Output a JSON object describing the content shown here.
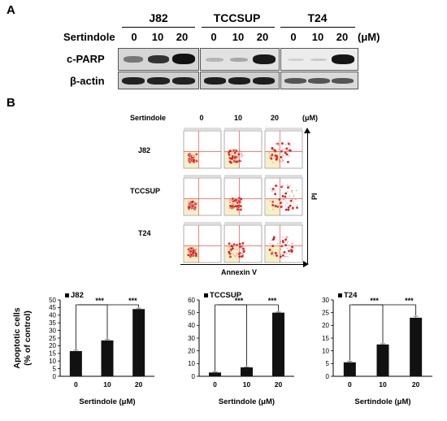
{
  "panelA": {
    "label": "A",
    "cell_lines": [
      "J82",
      "TCCSUP",
      "T24"
    ],
    "treatment_label": "Sertindole",
    "doses": [
      "0",
      "10",
      "20"
    ],
    "unit": "(μM)",
    "row_labels": [
      "c-PARP",
      "β-actin"
    ]
  },
  "panelB": {
    "label": "B",
    "treatment_label": "Sertindole",
    "doses": [
      "0",
      "10",
      "20"
    ],
    "unit": "(μM)",
    "row_labels": [
      "J82",
      "TCCSUP",
      "T24"
    ],
    "x_axis_label": "Annexin V",
    "y_axis_label": "PI"
  },
  "chart_data": [
    {
      "type": "bar",
      "legend": "J82",
      "categories": [
        "0",
        "10",
        "20"
      ],
      "values": [
        16.5,
        23.5,
        44
      ],
      "errors": [
        0.6,
        0.8,
        0.6
      ],
      "ylim": [
        0,
        50
      ],
      "yticks": [
        "0",
        "5",
        "10",
        "15",
        "20",
        "25",
        "30",
        "35",
        "40",
        "45",
        "50"
      ],
      "ylabel": "Apoptotic cells",
      "ylabel2": "(% of control)",
      "xlabel": "Sertindole (μM)",
      "significance": [
        "***",
        "***"
      ]
    },
    {
      "type": "bar",
      "legend": "TCCSUP",
      "categories": [
        "0",
        "10",
        "20"
      ],
      "values": [
        3,
        7,
        50
      ],
      "errors": [
        0.4,
        0.5,
        0.5
      ],
      "ylim": [
        0,
        60
      ],
      "yticks": [
        "0",
        "10",
        "20",
        "30",
        "40",
        "50",
        "60"
      ],
      "xlabel": "Sertindole (μM)",
      "significance": [
        "***",
        "***"
      ]
    },
    {
      "type": "bar",
      "legend": "T24",
      "categories": [
        "0",
        "10",
        "20"
      ],
      "values": [
        5.5,
        12.5,
        23
      ],
      "errors": [
        0.4,
        0.3,
        0.6
      ],
      "ylim": [
        0,
        30
      ],
      "yticks": [
        "0",
        "5",
        "10",
        "15",
        "20",
        "25",
        "30"
      ],
      "xlabel": "Sertindole (μM)",
      "significance": [
        "***",
        "***"
      ]
    }
  ]
}
